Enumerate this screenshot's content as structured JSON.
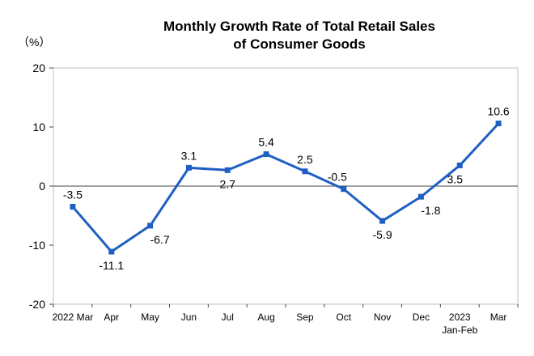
{
  "chart_data": {
    "type": "line",
    "title_line1": "Monthly Growth Rate of Total Retail Sales",
    "title_line2": "of Consumer Goods",
    "unit": "（%）",
    "categories": [
      {
        "label": "2022 Mar",
        "sub": ""
      },
      {
        "label": "Apr",
        "sub": ""
      },
      {
        "label": "May",
        "sub": ""
      },
      {
        "label": "Jun",
        "sub": ""
      },
      {
        "label": "Jul",
        "sub": ""
      },
      {
        "label": "Aug",
        "sub": ""
      },
      {
        "label": "Sep",
        "sub": ""
      },
      {
        "label": "Oct",
        "sub": ""
      },
      {
        "label": "Nov",
        "sub": ""
      },
      {
        "label": "Dec",
        "sub": ""
      },
      {
        "label": "2023",
        "sub": "Jan-Feb"
      },
      {
        "label": "Mar",
        "sub": ""
      }
    ],
    "values": [
      -3.5,
      -11.1,
      -6.7,
      3.1,
      2.7,
      5.4,
      2.5,
      -0.5,
      -5.9,
      -1.8,
      3.5,
      10.6
    ],
    "value_labels": [
      "-3.5",
      "-11.1",
      "-6.7",
      "3.1",
      "2.7",
      "5.4",
      "2.5",
      "-0.5",
      "-5.9",
      "-1.8",
      "3.5",
      "10.6"
    ],
    "yticks": [
      "20",
      "10",
      "0",
      "-10",
      "-20"
    ],
    "ylim": [
      -20,
      20
    ],
    "line_color": "#1f5fc4",
    "grid": false
  }
}
